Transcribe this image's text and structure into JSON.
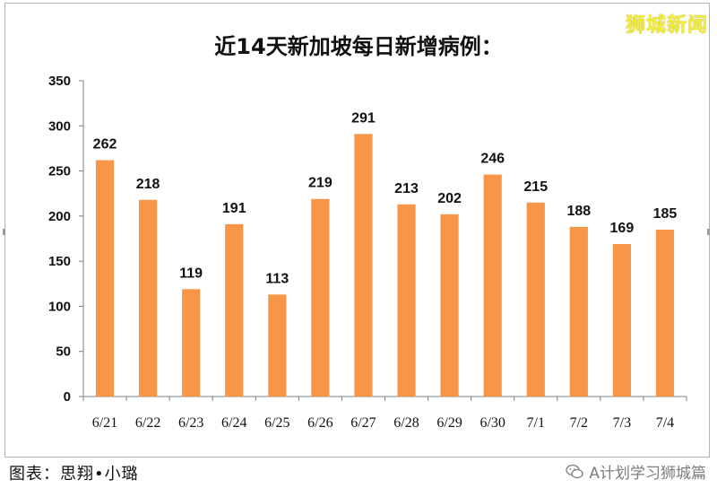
{
  "brand": "狮城新闻",
  "caption": "图表：思翔•小璐",
  "watermark": {
    "text": "A计划学习狮城篇",
    "icon": "wechat-icon"
  },
  "colors": {
    "bar": "#f79646",
    "axis": "#808080"
  },
  "chart_data": {
    "type": "bar",
    "title": "近14天新加坡每日新增病例：",
    "xlabel": "",
    "ylabel": "",
    "categories": [
      "6/21",
      "6/22",
      "6/23",
      "6/24",
      "6/25",
      "6/26",
      "6/27",
      "6/28",
      "6/29",
      "6/30",
      "7/1",
      "7/2",
      "7/3",
      "7/4"
    ],
    "values": [
      262,
      218,
      119,
      191,
      113,
      219,
      291,
      213,
      202,
      246,
      215,
      188,
      169,
      185
    ],
    "ylim": [
      0,
      350
    ],
    "yticks": [
      0,
      50,
      100,
      150,
      200,
      250,
      300,
      350
    ],
    "grid": false,
    "legend": "none",
    "data_labels": true
  }
}
